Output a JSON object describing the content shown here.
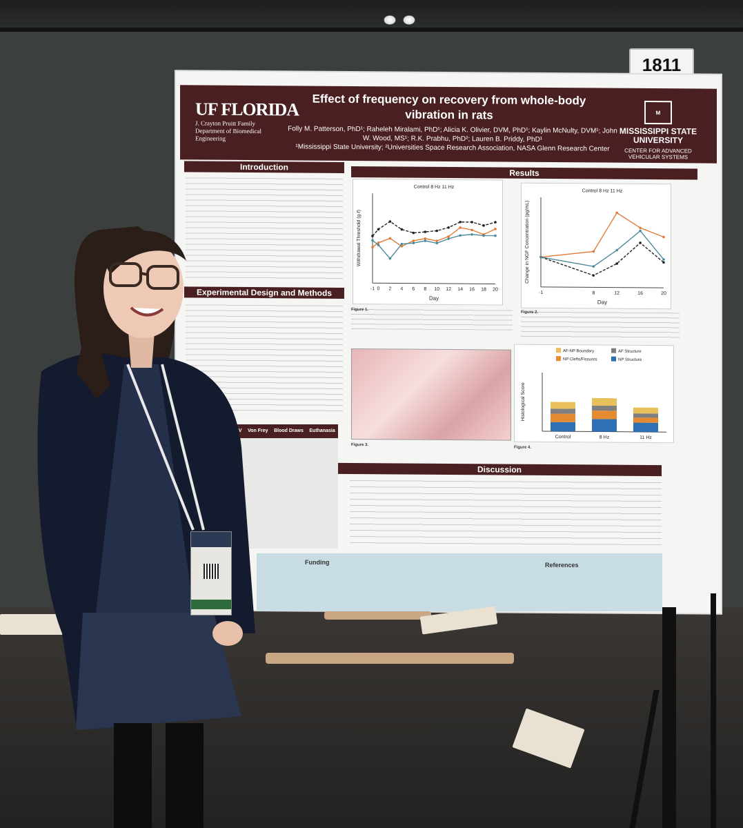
{
  "booth_number": "1811",
  "poster": {
    "title": "Effect of frequency on recovery from whole-body vibration in rats",
    "authors": "Folly M. Patterson, PhD¹; Raheleh Miralami, PhD¹; Alicia K. Olivier, DVM, PhD¹; Kaylin McNulty, DVM¹; John W. Wood, MS¹; R.K. Prabhu, PhD²; Lauren B. Priddy, PhD¹",
    "affiliations": "¹Mississippi State University; ²Universities Space Research Association, NASA Glenn Research Center",
    "uf_logo": "UF FLORIDA",
    "uf_dept": "J. Crayton Pruitt Family Department of Biomedical Engineering",
    "msu_logo": "MISSISSIPPI STATE UNIVERSITY",
    "msu_center": "CENTER FOR ADVANCED VEHICULAR SYSTEMS",
    "sections": {
      "introduction": "Introduction",
      "methods": "Experimental Design and Methods",
      "results": "Results",
      "discussion": "Discussion",
      "funding": "Funding",
      "references": "References"
    },
    "figure_captions": {
      "fig1": "Figure 1.",
      "fig2": "Figure 2.",
      "fig3": "Figure 3.",
      "fig4": "Figure 4."
    },
    "chart1_legend": "Control  8 Hz  11 Hz",
    "chart1_xlabel": "Day",
    "chart1_ylabel": "Withdrawal Threshold (g-f)",
    "chart2_legend": "Control  8 Hz  11 Hz",
    "chart2_xlabel": "Day",
    "chart2_ylabel": "Change in NGF Concentration (pg/mL)",
    "chart4_ylabel": "Histological Score",
    "chart4_legend": [
      "AF-NP Boundary",
      "AF Structure",
      "NP Clefts/Fissures",
      "NP Structure"
    ],
    "table_headers": [
      "WBV",
      "Von Frey",
      "Blood Draws",
      "Euthanasia"
    ]
  },
  "colors": {
    "maroon": "#4a1f22",
    "control": "#222222",
    "hz8": "#e07b39",
    "hz11": "#4a8a9a"
  },
  "chart_data": [
    {
      "type": "line",
      "xlabel": "Day",
      "ylabel": "Withdrawal Threshold (g-f)",
      "x": [
        -1,
        0,
        2,
        4,
        6,
        8,
        10,
        12,
        14,
        16,
        18,
        20
      ],
      "ylim": [
        0,
        80
      ],
      "series": [
        {
          "name": "Control",
          "values": [
            42,
            48,
            55,
            48,
            45,
            46,
            47,
            50,
            55,
            55,
            52,
            55
          ]
        },
        {
          "name": "8 Hz",
          "values": [
            32,
            36,
            40,
            33,
            38,
            40,
            38,
            42,
            50,
            48,
            44,
            49
          ]
        },
        {
          "name": "11 Hz",
          "values": [
            38,
            34,
            22,
            35,
            36,
            38,
            36,
            40,
            43,
            44,
            43,
            43
          ]
        }
      ]
    },
    {
      "type": "line",
      "xlabel": "Day",
      "ylabel": "Change in NGF Concentration (pg/mL)",
      "x": [
        -1,
        8,
        12,
        16,
        20
      ],
      "ylim": [
        -200,
        400
      ],
      "series": [
        {
          "name": "Control",
          "values": [
            0,
            -120,
            -40,
            100,
            -30
          ]
        },
        {
          "name": "8 Hz",
          "values": [
            0,
            40,
            300,
            200,
            140
          ]
        },
        {
          "name": "11 Hz",
          "values": [
            0,
            -60,
            50,
            180,
            -10
          ]
        }
      ]
    },
    {
      "type": "bar",
      "ylabel": "Histological Score",
      "categories": [
        "Control",
        "8 Hz",
        "11 Hz"
      ],
      "ylim": [
        0,
        7
      ],
      "series": [
        {
          "name": "NP Structure",
          "values": [
            1.1,
            1.5,
            1.1
          ]
        },
        {
          "name": "NP Clefts/Fissures",
          "values": [
            1.0,
            1.0,
            0.6
          ]
        },
        {
          "name": "AF Structure",
          "values": [
            0.6,
            0.6,
            0.5
          ]
        },
        {
          "name": "AF-NP Boundary",
          "values": [
            0.8,
            0.9,
            0.7
          ]
        }
      ]
    }
  ]
}
